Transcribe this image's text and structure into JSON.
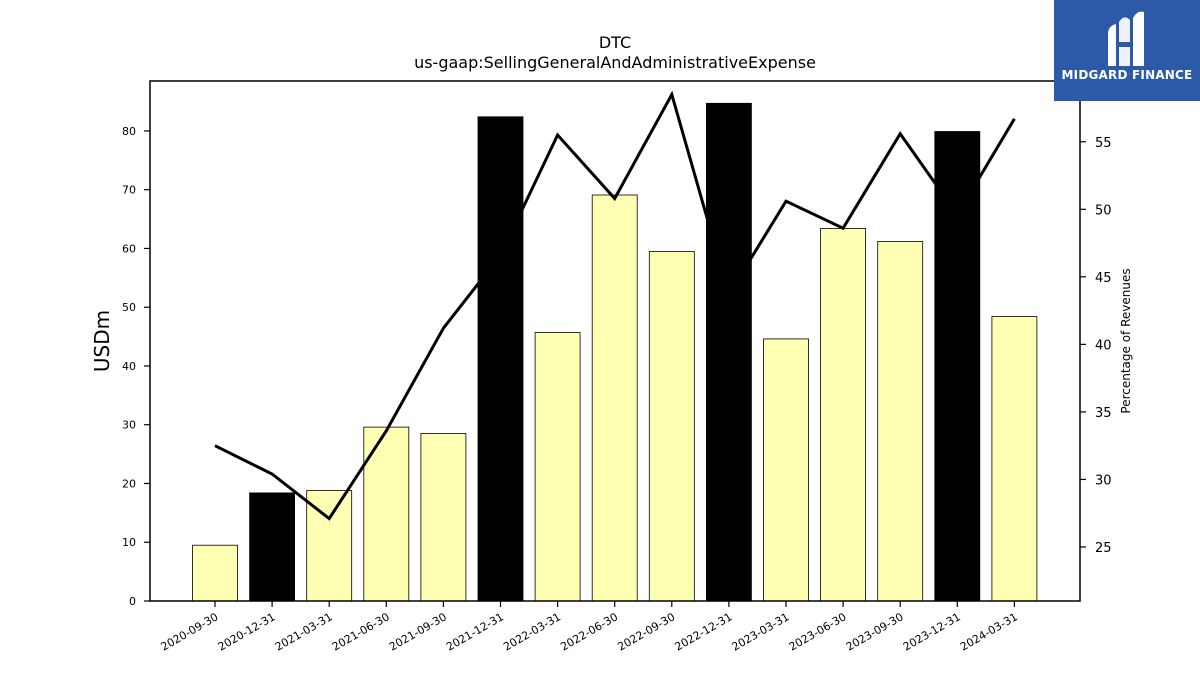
{
  "chart_data": {
    "type": "bar",
    "title": "DTC",
    "subtitle": "us-gaap:SellingGeneralAndAdministrativeExpense",
    "ylabel": "USDm",
    "y2label": "Percentage of Revenues",
    "ylim": [
      0,
      88.5
    ],
    "y2lim": [
      21,
      59.5
    ],
    "yticks": [
      0,
      10,
      20,
      30,
      40,
      50,
      60,
      70,
      80
    ],
    "y2ticks": [
      25,
      30,
      35,
      40,
      45,
      50,
      55
    ],
    "categories": [
      "2020-09-30",
      "2020-12-31",
      "2021-03-31",
      "2021-06-30",
      "2021-09-30",
      "2021-12-31",
      "2022-03-31",
      "2022-06-30",
      "2022-09-30",
      "2022-12-31",
      "2023-03-31",
      "2023-06-30",
      "2023-09-30",
      "2023-12-31",
      "2024-03-31"
    ],
    "series": [
      {
        "type": "bar",
        "values": [
          9.5,
          18.4,
          18.8,
          29.6,
          28.5,
          82.4,
          45.7,
          69.1,
          59.5,
          84.7,
          44.6,
          63.4,
          61.2,
          79.9,
          48.4
        ],
        "highlight": [
          false,
          true,
          false,
          false,
          false,
          true,
          false,
          false,
          false,
          true,
          false,
          false,
          false,
          true,
          false
        ],
        "color": "#ffffb3",
        "highlight_color": "#000000"
      },
      {
        "type": "line",
        "axis": "right",
        "values": [
          32.5,
          30.4,
          27.1,
          33.6,
          41.2,
          46.6,
          55.5,
          50.8,
          58.5,
          43.7,
          50.6,
          48.6,
          55.6,
          49.6,
          56.7
        ],
        "color": "#000000"
      }
    ],
    "grid": false,
    "legend": "none"
  },
  "logo": {
    "text": "MIDGARD FINANCE"
  }
}
